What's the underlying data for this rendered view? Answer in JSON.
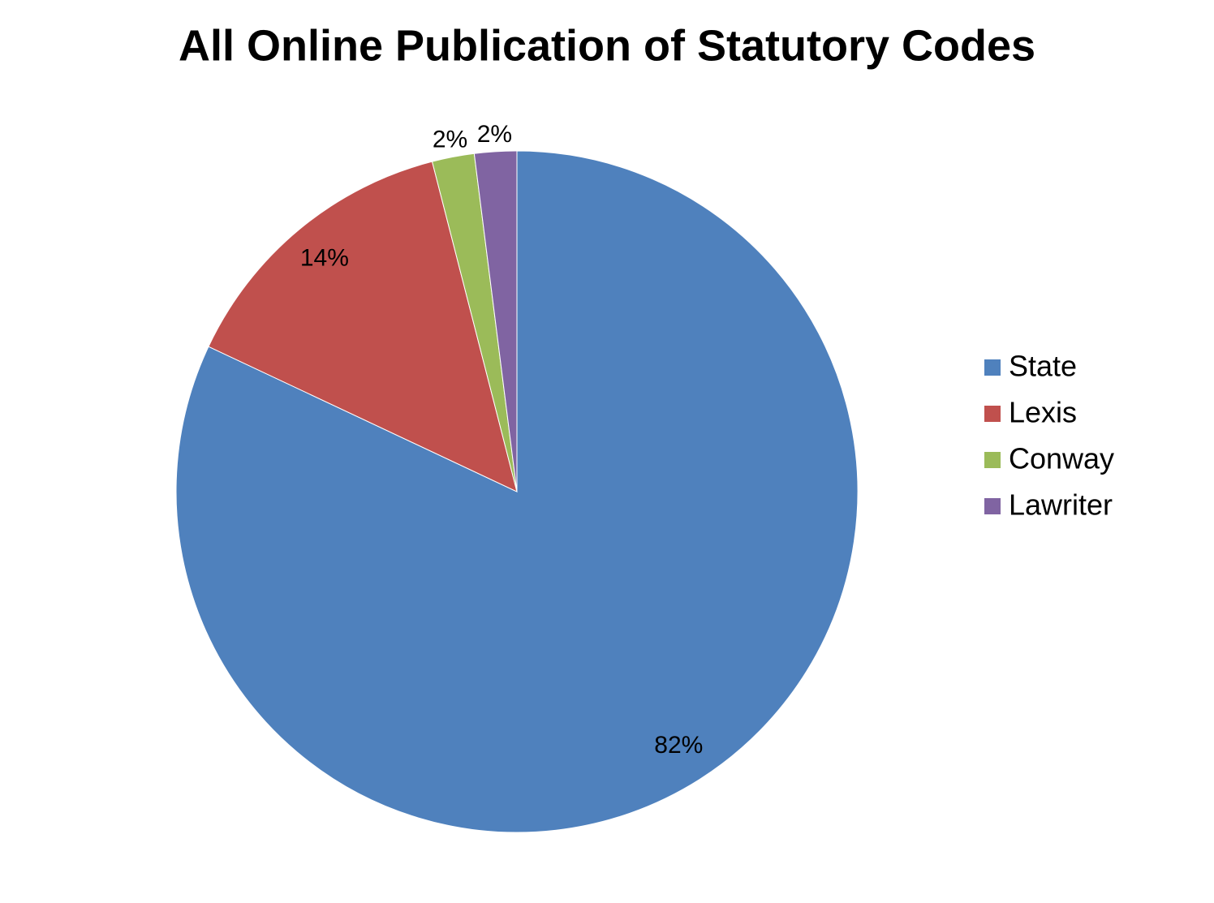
{
  "chart_data": {
    "type": "pie",
    "title": "All Online Publication of Statutory Codes",
    "categories": [
      "State",
      "Lexis",
      "Conway",
      "Lawriter"
    ],
    "values": [
      82,
      14,
      2,
      2
    ],
    "value_labels": [
      "82%",
      "14%",
      "2%",
      "2%"
    ],
    "colors": [
      "#4f81bd",
      "#c0504d",
      "#9bbb59",
      "#8064a2"
    ],
    "legend": "right"
  }
}
